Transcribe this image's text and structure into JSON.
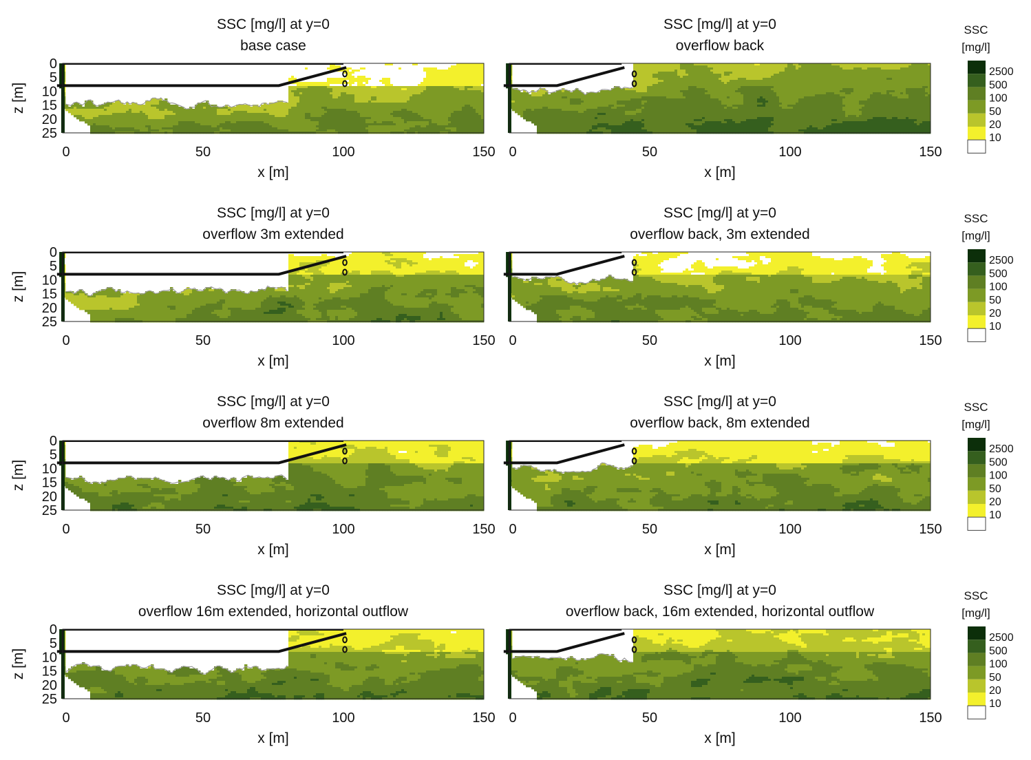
{
  "chart_data": [
    {
      "type": "heatmap",
      "title": "SSC [mg/l] at y=0",
      "subtitle": "base case",
      "xlabel": "x [m]",
      "ylabel": "z [m]",
      "xlim": [
        0,
        150
      ],
      "ylim": [
        0,
        25
      ],
      "xticks": [
        "0",
        "50",
        "100",
        "150"
      ],
      "yticks": [
        "0",
        "5",
        "10",
        "15",
        "20",
        "25"
      ],
      "mean_field": {
        "near_x": 2,
        "mid_x": 2.2,
        "far_x": 2.8,
        "surface_top": 1.6,
        "bottom": 0
      }
    },
    {
      "type": "heatmap",
      "title": "SSC [mg/l] at y=0",
      "subtitle": "overflow back",
      "xlabel": "x [m]",
      "ylabel": "",
      "xlim": [
        0,
        150
      ],
      "ylim": [
        0,
        25
      ],
      "xticks": [
        "0",
        "50",
        "100",
        "150"
      ],
      "yticks": [],
      "mean_field": {
        "near_x": 2.7,
        "mid_x": 3.3,
        "far_x": 3.6,
        "surface_top": 0.3,
        "bottom": 0
      }
    },
    {
      "type": "heatmap",
      "title": "SSC [mg/l] at y=0",
      "subtitle": "overflow 3m extended",
      "xlabel": "x [m]",
      "ylabel": "z [m]",
      "xlim": [
        0,
        150
      ],
      "ylim": [
        0,
        25
      ],
      "xticks": [
        "0",
        "50",
        "100",
        "150"
      ],
      "yticks": [
        "0",
        "5",
        "10",
        "15",
        "20",
        "25"
      ],
      "mean_field": {
        "near_x": 1.5,
        "mid_x": 2.9,
        "far_x": 2.6,
        "surface_top": 1.2,
        "bottom": 0
      }
    },
    {
      "type": "heatmap",
      "title": "SSC [mg/l] at y=0",
      "subtitle": "overflow back, 3m extended",
      "xlabel": "x [m]",
      "ylabel": "",
      "xlim": [
        0,
        150
      ],
      "ylim": [
        0,
        25
      ],
      "xticks": [
        "0",
        "50",
        "100",
        "150"
      ],
      "yticks": [],
      "mean_field": {
        "near_x": 2.6,
        "mid_x": 2.6,
        "far_x": 2.7,
        "surface_top": 1.2,
        "bottom": 0
      }
    },
    {
      "type": "heatmap",
      "title": "SSC [mg/l] at y=0",
      "subtitle": "overflow 8m extended",
      "xlabel": "x [m]",
      "ylabel": "z [m]",
      "xlim": [
        0,
        150
      ],
      "ylim": [
        0,
        25
      ],
      "xticks": [
        "0",
        "50",
        "100",
        "150"
      ],
      "yticks": [
        "0",
        "5",
        "10",
        "15",
        "20",
        "25"
      ],
      "mean_field": {
        "near_x": 2.8,
        "mid_x": 3.2,
        "far_x": 2.7,
        "surface_top": 1,
        "bottom": 0
      }
    },
    {
      "type": "heatmap",
      "title": "SSC [mg/l] at y=0",
      "subtitle": "overflow back, 8m extended",
      "xlabel": "x [m]",
      "ylabel": "",
      "xlim": [
        0,
        150
      ],
      "ylim": [
        0,
        25
      ],
      "xticks": [
        "0",
        "50",
        "100",
        "150"
      ],
      "yticks": [],
      "mean_field": {
        "near_x": 2.6,
        "mid_x": 2.9,
        "far_x": 3,
        "surface_top": 1.4,
        "bottom": 0
      }
    },
    {
      "type": "heatmap",
      "title": "SSC [mg/l] at y=0",
      "subtitle": "overflow 16m extended, horizontal outflow",
      "xlabel": "x [m]",
      "ylabel": "z [m]",
      "xlim": [
        0,
        150
      ],
      "ylim": [
        0,
        25
      ],
      "xticks": [
        "0",
        "50",
        "100",
        "150"
      ],
      "yticks": [
        "0",
        "5",
        "10",
        "15",
        "20",
        "25"
      ],
      "mean_field": {
        "near_x": 2.8,
        "mid_x": 3.1,
        "far_x": 2.9,
        "surface_top": 1.1,
        "bottom": 0
      }
    },
    {
      "type": "heatmap",
      "title": "SSC [mg/l] at y=0",
      "subtitle": "overflow back, 16m extended, horizontal outflow",
      "xlabel": "x [m]",
      "ylabel": "",
      "xlim": [
        0,
        150
      ],
      "ylim": [
        0,
        25
      ],
      "xticks": [
        "0",
        "50",
        "100",
        "150"
      ],
      "yticks": [],
      "mean_field": {
        "near_x": 2.9,
        "mid_x": 3.3,
        "far_x": 3.1,
        "surface_top": 1,
        "bottom": 0
      }
    }
  ],
  "colorbar": {
    "title_line1": "SSC",
    "title_line2": "[mg/l]",
    "levels": [
      "2500",
      "500",
      "100",
      "50",
      "20",
      "10"
    ],
    "colors": [
      "#0c2f0a",
      "#355f1e",
      "#5f7f23",
      "#7d9a25",
      "#b9c52c",
      "#f3f02c",
      "#ffffff"
    ]
  },
  "colors": {
    "structure": "#111111",
    "pile": "#0c2f0a",
    "contour_line": "#9a9a9a"
  }
}
